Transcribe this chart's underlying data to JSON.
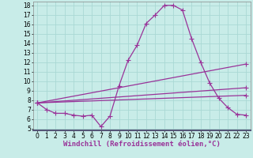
{
  "xlabel": "Windchill (Refroidissement éolien,°C)",
  "background_color": "#c8ece8",
  "grid_color": "#aad8d4",
  "line_color": "#993399",
  "xlim": [
    -0.5,
    23.5
  ],
  "ylim": [
    4.8,
    18.4
  ],
  "yticks": [
    5,
    6,
    7,
    8,
    9,
    10,
    11,
    12,
    13,
    14,
    15,
    16,
    17,
    18
  ],
  "xticks": [
    0,
    1,
    2,
    3,
    4,
    5,
    6,
    7,
    8,
    9,
    10,
    11,
    12,
    13,
    14,
    15,
    16,
    17,
    18,
    19,
    20,
    21,
    22,
    23
  ],
  "curve1_x": [
    0,
    1,
    2,
    3,
    4,
    5,
    6,
    7,
    8,
    9,
    10,
    11,
    12,
    13,
    14,
    15,
    16,
    17,
    18,
    19,
    20,
    21,
    22,
    23
  ],
  "curve1_y": [
    7.7,
    7.0,
    6.6,
    6.6,
    6.4,
    6.3,
    6.4,
    5.2,
    6.3,
    9.5,
    12.2,
    13.8,
    16.1,
    17.0,
    18.0,
    18.0,
    17.5,
    14.5,
    12.0,
    9.8,
    8.2,
    7.2,
    6.5,
    6.4
  ],
  "curve2_x": [
    0,
    23
  ],
  "curve2_y": [
    7.7,
    9.3
  ],
  "curve3_x": [
    0,
    23
  ],
  "curve3_y": [
    7.7,
    8.5
  ],
  "curve4_x": [
    0,
    23
  ],
  "curve4_y": [
    7.7,
    11.8
  ],
  "marker": "+",
  "marker_size": 4,
  "linewidth": 0.9,
  "xlabel_fontsize": 6.5,
  "tick_fontsize": 5.5
}
